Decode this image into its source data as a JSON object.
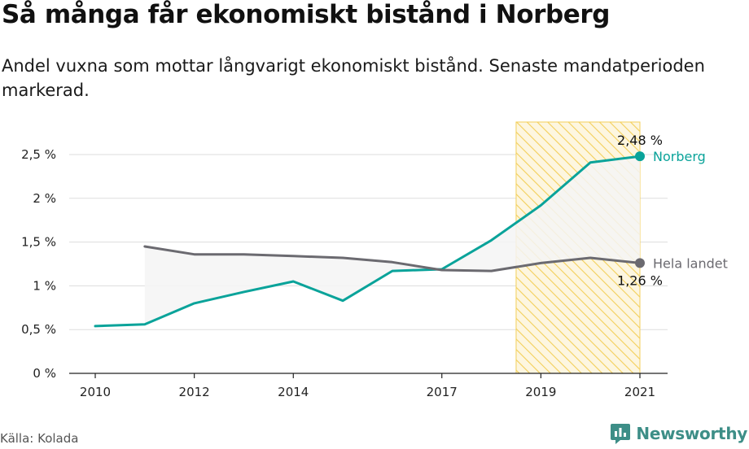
{
  "title": "Så många får ekonomiskt bistånd i Norberg",
  "subtitle": "Andel vuxna som mottar långvarigt ekonomiskt bistånd. Senaste mandatperioden markerad.",
  "source": "Källa: Kolada",
  "brand": {
    "name": "Newsworthy",
    "icon": "newsworthy-logo-icon"
  },
  "colors": {
    "norberg": "#0aa39a",
    "national": "#6b6a70",
    "highlight": "#f3cf5a",
    "gap_fill": "#f4f4f4",
    "grid": "#dddddd"
  },
  "chart_data": {
    "type": "line",
    "x": [
      2010,
      2011,
      2012,
      2013,
      2014,
      2015,
      2016,
      2017,
      2018,
      2019,
      2020,
      2021
    ],
    "series": [
      {
        "name": "Norberg",
        "values": [
          0.54,
          0.56,
          0.8,
          0.93,
          1.05,
          0.83,
          1.17,
          1.19,
          1.52,
          1.92,
          2.41,
          2.48
        ]
      },
      {
        "name": "Hela landet",
        "values": [
          null,
          1.45,
          1.36,
          1.36,
          1.34,
          1.32,
          1.27,
          1.18,
          1.17,
          1.26,
          1.32,
          1.26
        ]
      }
    ],
    "x_ticks": [
      "2010",
      "2012",
      "2014",
      "2017",
      "2019",
      "2021"
    ],
    "y_ticks": [
      "0 %",
      "0,5 %",
      "1 %",
      "1,5 %",
      "2 %",
      "2,5 %"
    ],
    "ylim": [
      0,
      2.8
    ],
    "highlight_period": [
      2018.5,
      2021
    ],
    "end_labels": [
      {
        "series": "Norberg",
        "value_label": "2,48 %",
        "name_label": "Norberg"
      },
      {
        "series": "Hela landet",
        "value_label": "1,26 %",
        "name_label": "Hela landet"
      }
    ]
  }
}
